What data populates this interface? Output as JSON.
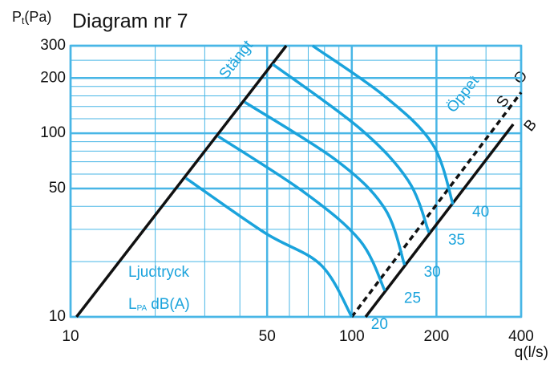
{
  "chart_data": {
    "type": "line",
    "title": "Diagram nr 7",
    "ylabel": {
      "main": "P",
      "sub": "t",
      "unit": "(Pa)"
    },
    "xlabel": "q(l/s)",
    "annotation": {
      "line1": "Ljudtryck",
      "main": "L",
      "sub": "PA",
      "unit": "dB(A)"
    },
    "xlog": true,
    "ylog": true,
    "grid": true,
    "xlim": [
      10,
      400
    ],
    "ylim": [
      10,
      300
    ],
    "xticks": [
      10,
      50,
      100,
      200,
      400
    ],
    "yticks": [
      10,
      50,
      100,
      200,
      300
    ],
    "xminor": [
      20,
      30,
      40,
      60,
      70,
      80,
      90,
      300
    ],
    "yminor": [
      20,
      30,
      40,
      60,
      70,
      80,
      90,
      120,
      140,
      160,
      180,
      250
    ],
    "series": [
      {
        "name": "Stängt",
        "color": "#111111",
        "x": [
          10.5,
          58.5
        ],
        "values": [
          10,
          300
        ]
      },
      {
        "name": "S",
        "color": "#111111",
        "dashed": true,
        "x": [
          100,
          400
        ],
        "values": [
          10,
          167
        ]
      },
      {
        "name": "B",
        "color": "#111111",
        "x": [
          112,
          375
        ],
        "values": [
          10,
          112
        ]
      },
      {
        "name": "20",
        "color": "#1aa3dc",
        "x": [
          25.7,
          48.9,
          77.6,
          100
        ],
        "values": [
          57,
          28.8,
          19.2,
          10
        ]
      },
      {
        "name": "25",
        "color": "#1aa3dc",
        "x": [
          33.5,
          68,
          107,
          131
        ],
        "values": [
          96.3,
          47.5,
          26,
          13.9
        ]
      },
      {
        "name": "30",
        "color": "#1aa3dc",
        "x": [
          41.6,
          88.4,
          131,
          154
        ],
        "values": [
          148,
          71,
          38.9,
          19.2
        ]
      },
      {
        "name": "35",
        "color": "#1aa3dc",
        "x": [
          52.3,
          107,
          159,
          188
        ],
        "values": [
          238,
          106,
          55,
          28.8
        ]
      },
      {
        "name": "40",
        "color": "#1aa3dc",
        "x": [
          72.5,
          131,
          194,
          229
        ],
        "values": [
          300,
          159,
          87,
          41
        ]
      }
    ],
    "open_label": "Öppet",
    "open_marker": "O"
  }
}
